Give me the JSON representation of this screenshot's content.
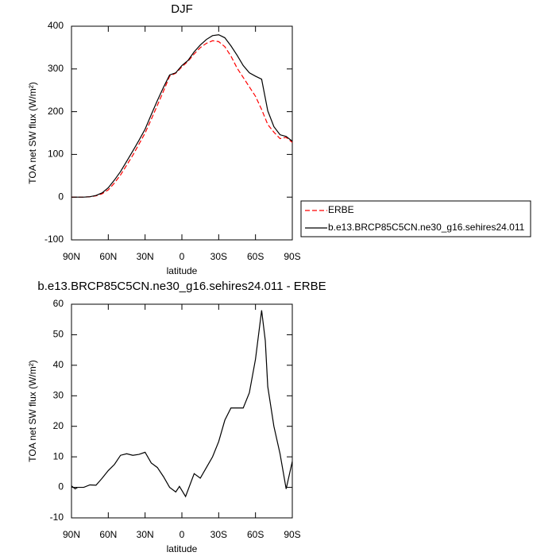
{
  "chart_data": [
    {
      "type": "line",
      "title": "DJF",
      "xlabel": "latitude",
      "ylabel": "TOA net SW flux (W/m²)",
      "xlim": [
        90,
        -90
      ],
      "xticks": [
        {
          "value": 90,
          "label": "90N"
        },
        {
          "value": 60,
          "label": "60N"
        },
        {
          "value": 30,
          "label": "30N"
        },
        0,
        {
          "value": -30,
          "label": "30S"
        },
        {
          "value": -60,
          "label": "60S"
        },
        {
          "value": -90,
          "label": "90S"
        }
      ],
      "ylim": [
        -100,
        400
      ],
      "yticks": [
        -100,
        0,
        100,
        200,
        300,
        400
      ],
      "legend": "right",
      "x": [
        90,
        85,
        80,
        75,
        70,
        65,
        60,
        55,
        50,
        45,
        40,
        35,
        30,
        25,
        20,
        15,
        10,
        5,
        0,
        -5,
        -10,
        -15,
        -20,
        -25,
        -30,
        -35,
        -40,
        -45,
        -50,
        -55,
        -60,
        -65,
        -70,
        -75,
        -80,
        -85,
        -90
      ],
      "series": [
        {
          "name": "ERBE",
          "color": "#ff0000",
          "dash": true,
          "values": [
            0,
            0,
            0,
            1,
            3,
            8,
            17,
            33,
            52,
            75,
            98,
            124,
            150,
            182,
            215,
            248,
            283,
            290,
            305,
            318,
            335,
            350,
            360,
            366,
            364,
            352,
            330,
            302,
            280,
            258,
            236,
            205,
            170,
            152,
            137,
            140,
            128
          ]
        },
        {
          "name": "b.e13.BRCP85C5CN.ne30_g16.sehires24.011",
          "color": "#000000",
          "dash": false,
          "values": [
            0,
            0,
            0,
            1,
            4,
            10,
            22,
            40,
            60,
            84,
            108,
            133,
            159,
            193,
            226,
            257,
            286,
            291,
            308,
            320,
            340,
            356,
            369,
            378,
            380,
            373,
            354,
            332,
            308,
            291,
            283,
            276,
            202,
            165,
            146,
            142,
            131
          ]
        }
      ]
    },
    {
      "type": "line",
      "title": "b.e13.BRCP85C5CN.ne30_g16.sehires24.011 - ERBE",
      "xlabel": "latitude",
      "ylabel": "TOA net SW flux (W/m²)",
      "xlim": [
        90,
        -90
      ],
      "xticks": [
        {
          "value": 90,
          "label": "90N"
        },
        {
          "value": 60,
          "label": "60N"
        },
        {
          "value": 30,
          "label": "30N"
        },
        0,
        {
          "value": -30,
          "label": "30S"
        },
        {
          "value": -60,
          "label": "60S"
        },
        {
          "value": -90,
          "label": "90S"
        }
      ],
      "ylim": [
        -10,
        60
      ],
      "yticks": [
        -10,
        0,
        10,
        20,
        30,
        40,
        50,
        60
      ],
      "x": [
        90,
        87,
        85,
        80,
        75,
        70,
        65,
        60,
        55,
        50,
        45,
        40,
        35,
        30,
        25,
        20,
        15,
        10,
        5,
        2,
        0,
        -3,
        -10,
        -15,
        -20,
        -25,
        -30,
        -35,
        -40,
        -45,
        -50,
        -55,
        -60,
        -65,
        -68,
        -70,
        -75,
        -80,
        -85,
        -90
      ],
      "series": [
        {
          "color": "#000000",
          "dash": false,
          "values": [
            0.5,
            -0.5,
            0,
            0,
            0.8,
            0.7,
            3,
            5.5,
            7.5,
            10.5,
            11,
            10.5,
            10.8,
            11.5,
            8,
            6.5,
            3.5,
            0,
            -1.5,
            0.3,
            -1,
            -3,
            4.5,
            3,
            6.5,
            10,
            15,
            22,
            26,
            26,
            26,
            31,
            42,
            58,
            48,
            33,
            20,
            11,
            -0.5,
            8.5
          ]
        }
      ]
    }
  ]
}
